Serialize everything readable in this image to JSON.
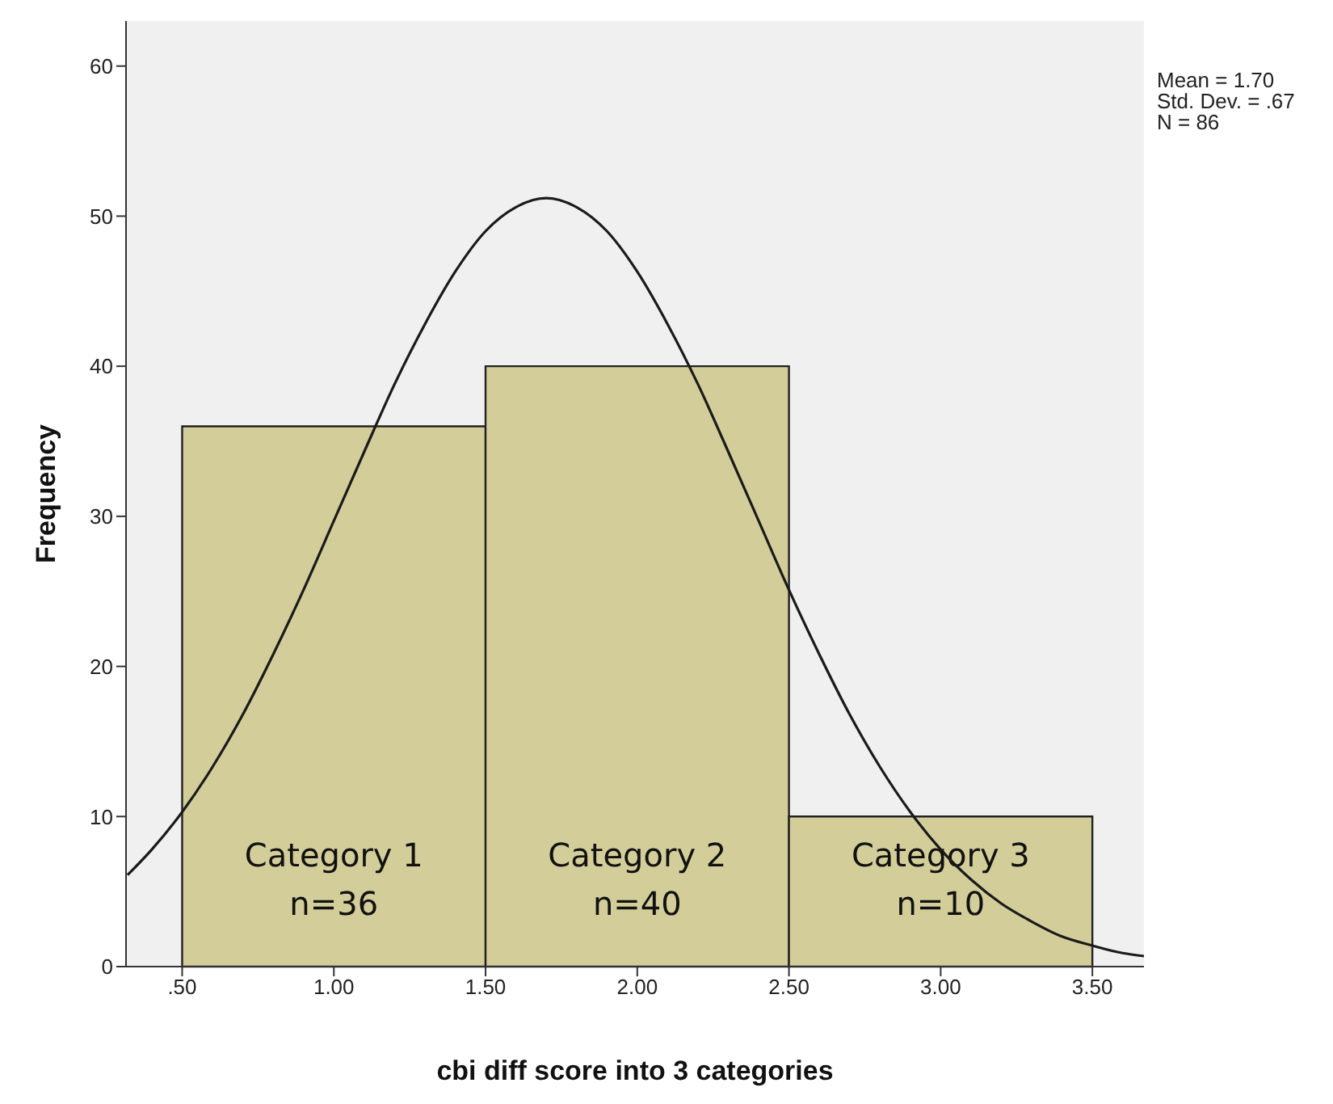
{
  "chart_data": {
    "type": "histogram",
    "xlabel": "cbi diff score into 3 categories",
    "ylabel": "Frequency",
    "bins": [
      0.5,
      1.5,
      2.5,
      3.5
    ],
    "values": [
      36,
      40,
      10
    ],
    "color": "#d3ce99",
    "value_labels": [
      "n=36",
      "n=40",
      "n=10"
    ],
    "series": [
      {
        "type": "line",
        "color": "#1a1a1a",
        "x": [
          0.32,
          0.4,
          0.5,
          0.6,
          0.7,
          0.8,
          0.9,
          1.0,
          1.1,
          1.2,
          1.3,
          1.4,
          1.5,
          1.6,
          1.7,
          1.8,
          1.9,
          2.0,
          2.1,
          2.2,
          2.3,
          2.4,
          2.5,
          2.6,
          2.7,
          2.8,
          2.9,
          3.0,
          3.1,
          3.2,
          3.3,
          3.4,
          3.5,
          3.6,
          3.67
        ],
        "values": [
          6.1,
          7.8,
          10.3,
          13.3,
          16.8,
          20.8,
          25.1,
          29.7,
          34.3,
          38.8,
          42.8,
          46.3,
          49.0,
          50.6,
          51.2,
          50.6,
          49.0,
          46.3,
          42.8,
          38.8,
          34.3,
          29.7,
          25.1,
          20.8,
          16.8,
          13.3,
          10.3,
          7.8,
          5.8,
          4.2,
          3.0,
          2.0,
          1.4,
          0.9,
          0.7
        ]
      }
    ],
    "annotations": [
      "Category 1",
      "Category 2",
      "Category 3",
      "Mean = 1.70",
      "Std. Dev. = .67",
      "N = 86"
    ],
    "xlim": [
      0.315,
      3.67
    ],
    "ylim": [
      0,
      63
    ],
    "xticks": [
      {
        "value": 0.5,
        "label": ".50"
      },
      {
        "value": 1.0,
        "label": "1.00"
      },
      {
        "value": 1.5,
        "label": "1.50"
      },
      {
        "value": 2.0,
        "label": "2.00"
      },
      {
        "value": 2.5,
        "label": "2.50"
      },
      {
        "value": 3.0,
        "label": "3.00"
      },
      {
        "value": 3.5,
        "label": "3.50"
      }
    ],
    "yticks": [
      0,
      10,
      20,
      30,
      40,
      50,
      60
    ],
    "grid": false,
    "legend": false,
    "marker": "none",
    "line_style": "solid"
  }
}
